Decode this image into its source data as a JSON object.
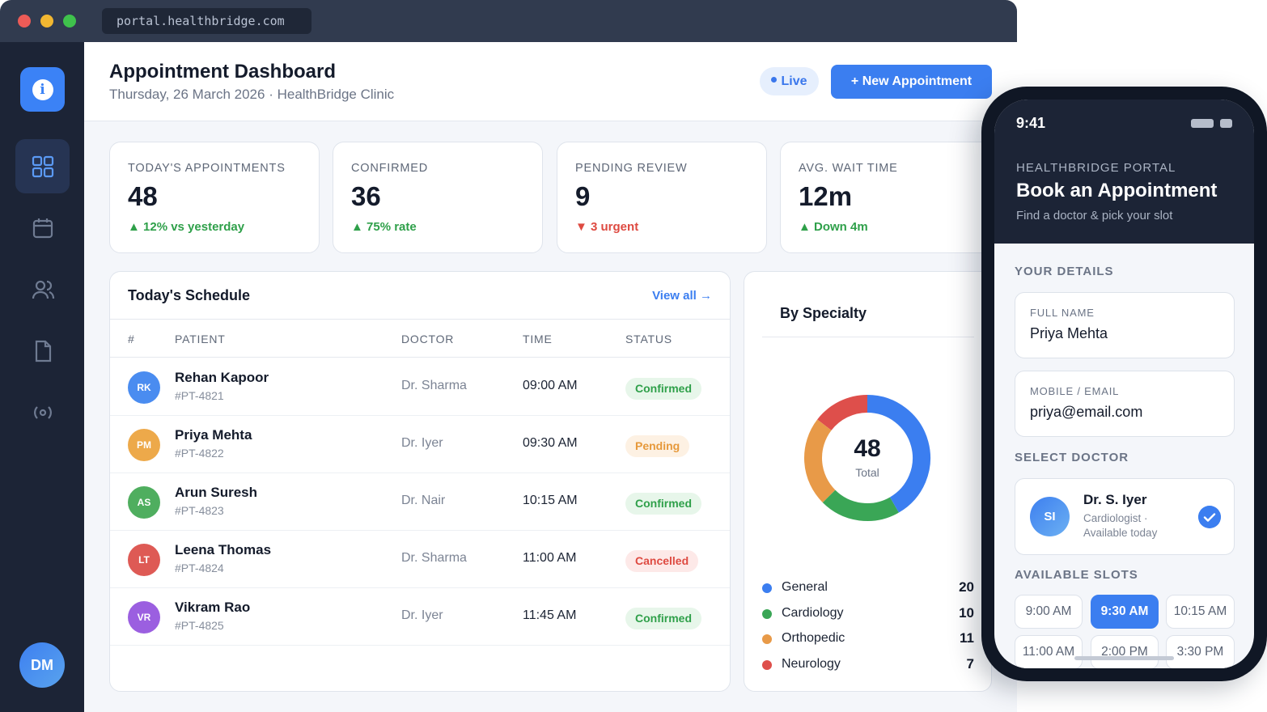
{
  "browser": {
    "url": "portal.healthbridge.com"
  },
  "sidebar": {
    "items": [
      {
        "icon": "dashboard-grid-icon",
        "active": true
      },
      {
        "icon": "calendar-icon",
        "active": false
      },
      {
        "icon": "users-icon",
        "active": false
      },
      {
        "icon": "document-icon",
        "active": false
      },
      {
        "icon": "broadcast-icon",
        "active": false
      }
    ],
    "avatar": "DM"
  },
  "header": {
    "title": "Appointment Dashboard",
    "date": "Thursday, 26 March 2026",
    "clinic": "HealthBridge Clinic",
    "live_label": "Live",
    "new_button": "+ New Appointment"
  },
  "stats": [
    {
      "label": "TODAY'S APPOINTMENTS",
      "value": "48",
      "delta": "▲ 12% vs yesterday",
      "trend": "up"
    },
    {
      "label": "CONFIRMED",
      "value": "36",
      "delta": "▲ 75% rate",
      "trend": "up"
    },
    {
      "label": "PENDING REVIEW",
      "value": "9",
      "delta": "▼ 3 urgent",
      "trend": "down"
    },
    {
      "label": "AVG. WAIT TIME",
      "value": "12m",
      "delta": "▲ Down 4m",
      "trend": "up"
    }
  ],
  "schedule": {
    "title": "Today's Schedule",
    "view_all": "View all →",
    "columns": [
      "#",
      "PATIENT",
      "DOCTOR",
      "TIME",
      "STATUS"
    ],
    "rows": [
      {
        "initials": "RK",
        "avatar_color": "#4a8cf0",
        "name": "Rehan Kapoor",
        "id": "#PT-4821",
        "doctor": "Dr. Sharma",
        "time": "09:00 AM",
        "status": "Confirmed",
        "status_kind": "confirmed"
      },
      {
        "initials": "PM",
        "avatar_color": "#eda94a",
        "name": "Priya Mehta",
        "id": "#PT-4822",
        "doctor": "Dr. Iyer",
        "time": "09:30 AM",
        "status": "Pending",
        "status_kind": "pending"
      },
      {
        "initials": "AS",
        "avatar_color": "#4fae5f",
        "name": "Arun Suresh",
        "id": "#PT-4823",
        "doctor": "Dr. Nair",
        "time": "10:15 AM",
        "status": "Confirmed",
        "status_kind": "confirmed"
      },
      {
        "initials": "LT",
        "avatar_color": "#de5a55",
        "name": "Leena Thomas",
        "id": "#PT-4824",
        "doctor": "Dr. Sharma",
        "time": "11:00 AM",
        "status": "Cancelled",
        "status_kind": "cancelled"
      },
      {
        "initials": "VR",
        "avatar_color": "#9b5fe0",
        "name": "Vikram Rao",
        "id": "#PT-4825",
        "doctor": "Dr. Iyer",
        "time": "11:45 AM",
        "status": "Confirmed",
        "status_kind": "confirmed"
      }
    ]
  },
  "specialty": {
    "title": "By Specialty",
    "total": "48",
    "total_label": "Total",
    "items": [
      {
        "name": "General",
        "value": 20,
        "color": "#3b7ef0"
      },
      {
        "name": "Cardiology",
        "value": 10,
        "color": "#3aa656"
      },
      {
        "name": "Orthopedic",
        "value": 11,
        "color": "#e89a48"
      },
      {
        "name": "Neurology",
        "value": 7,
        "color": "#de4f4b"
      }
    ]
  },
  "phone": {
    "clock": "9:41",
    "portal_label": "HEALTHBRIDGE PORTAL",
    "title": "Book an Appointment",
    "subtitle": "Find a doctor & pick your slot",
    "details_label": "YOUR DETAILS",
    "name_label": "FULL NAME",
    "name_value": "Priya Mehta",
    "contact_label": "MOBILE / EMAIL",
    "contact_value": "priya@email.com",
    "doctor_label": "SELECT DOCTOR",
    "doctor": {
      "initials": "SI",
      "name": "Dr. S. Iyer",
      "specialty": "Cardiologist · Available today"
    },
    "slots_label": "AVAILABLE SLOTS",
    "slots": [
      {
        "label": "9:00 AM",
        "selected": false
      },
      {
        "label": "9:30 AM",
        "selected": true
      },
      {
        "label": "10:15 AM",
        "selected": false
      },
      {
        "label": "11:00 AM",
        "selected": false
      },
      {
        "label": "2:00 PM",
        "selected": false
      },
      {
        "label": "3:30 PM",
        "selected": false
      }
    ]
  }
}
